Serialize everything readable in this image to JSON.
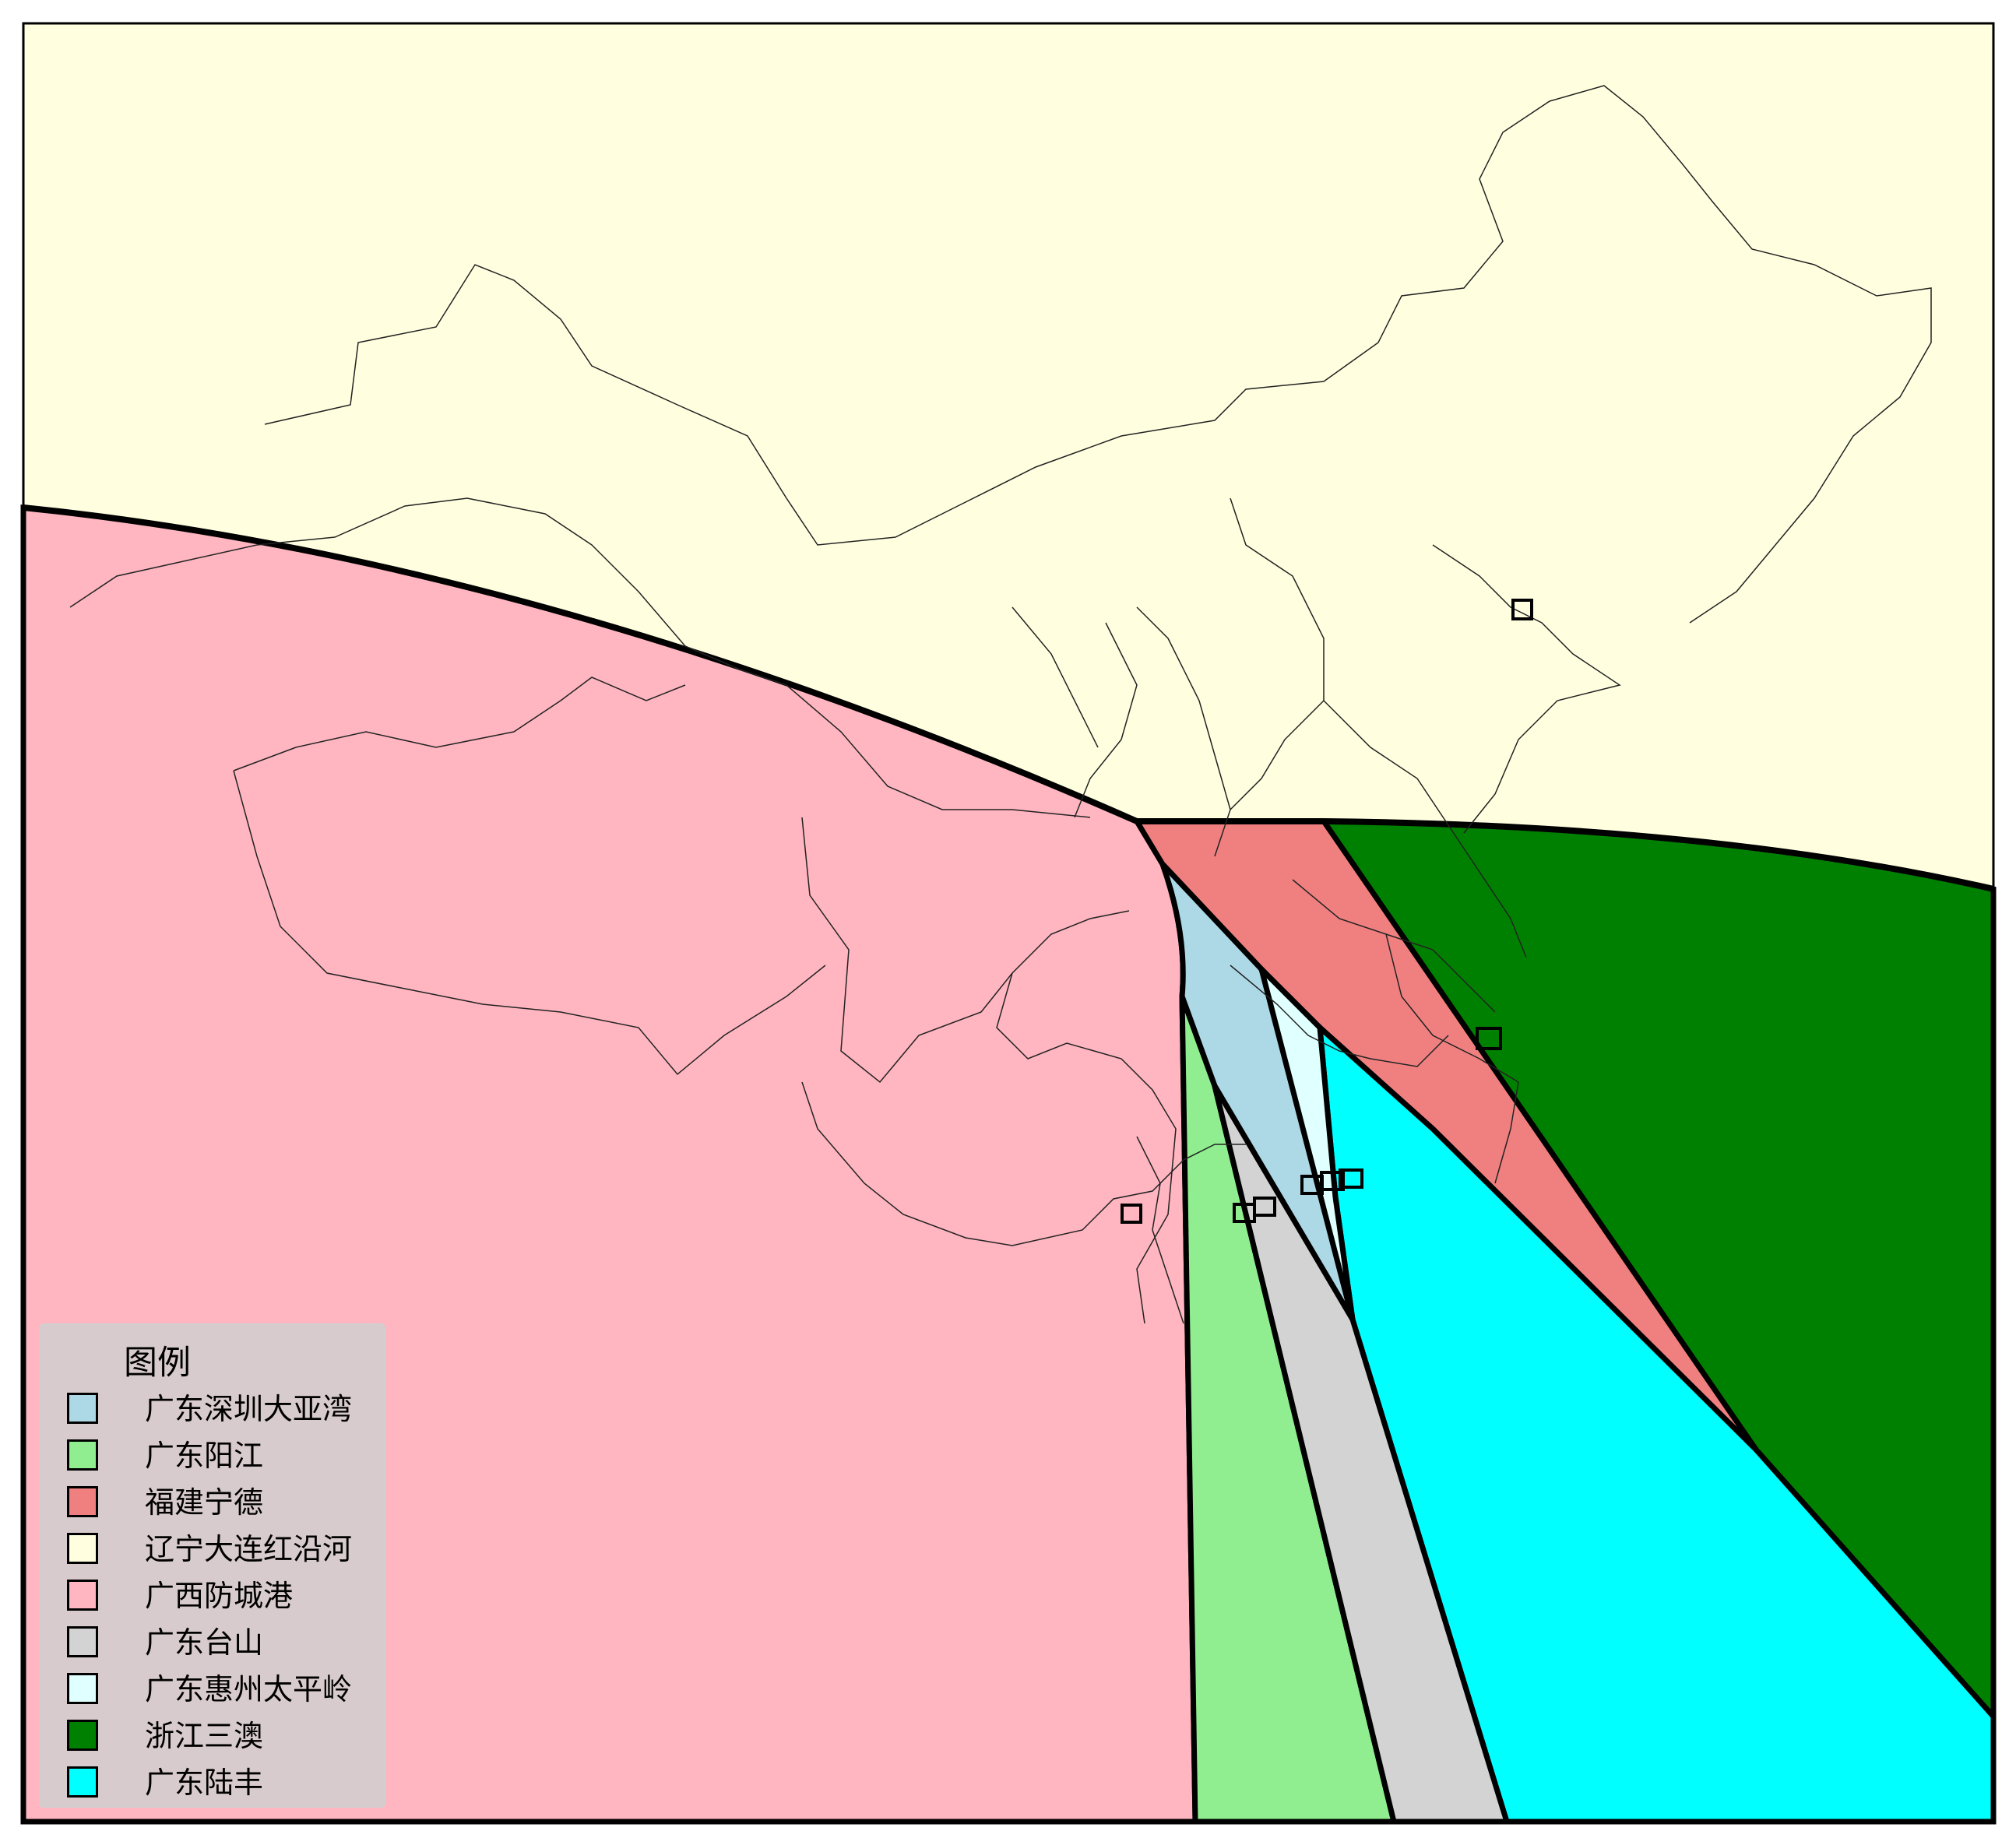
{
  "legend": {
    "title": "图例",
    "items": [
      {
        "label": "广东深圳大亚湾",
        "color": "#add8e6"
      },
      {
        "label": "广东阳江",
        "color": "#90ee90"
      },
      {
        "label": "福建宁德",
        "color": "#f08080"
      },
      {
        "label": "辽宁大连红沿河",
        "color": "#ffffe0"
      },
      {
        "label": "广西防城港",
        "color": "#ffb6c1"
      },
      {
        "label": "广东台山",
        "color": "#d3d3d3"
      },
      {
        "label": "广东惠州太平岭",
        "color": "#e0ffff"
      },
      {
        "label": "浙江三澳",
        "color": "#008000"
      },
      {
        "label": "广东陆丰",
        "color": "#00ffff"
      }
    ]
  },
  "colors": {
    "frame": "#000000",
    "boundary": "#000000",
    "region_edge": "#000000"
  }
}
